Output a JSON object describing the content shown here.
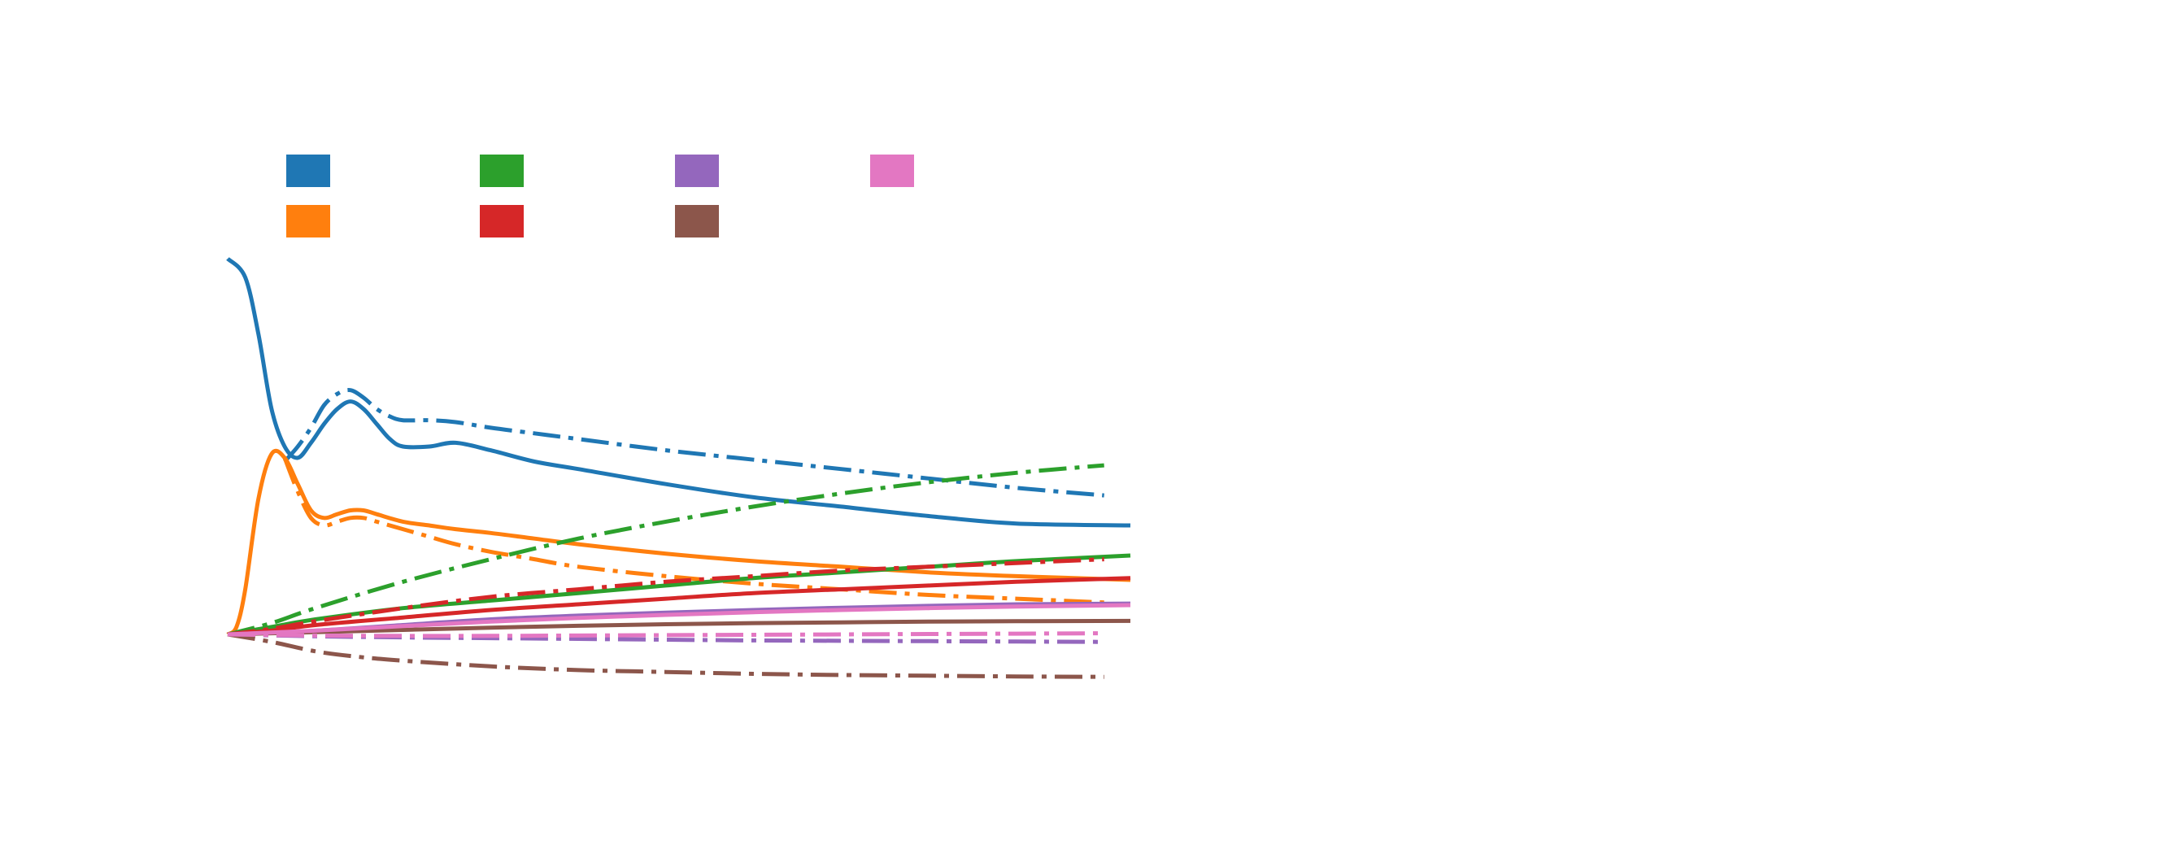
{
  "chart_data": {
    "type": "line",
    "title": "",
    "xlabel": "",
    "ylabel": "",
    "xlim": [
      0,
      1.03
    ],
    "ylim": [
      -0.3,
      1.0
    ],
    "grid": false,
    "legend": {
      "position": "top-left",
      "columns": 4
    },
    "series": [
      {
        "color": "#1f77b4",
        "dash": "solid",
        "x": [
          0,
          0.02,
          0.035,
          0.05,
          0.065,
          0.08,
          0.095,
          0.11,
          0.125,
          0.14,
          0.155,
          0.17,
          0.185,
          0.2,
          0.23,
          0.26,
          0.3,
          0.35,
          0.4,
          0.5,
          0.6,
          0.7,
          0.8,
          0.9,
          1.03
        ],
        "y": [
          1.0,
          0.95,
          0.8,
          0.6,
          0.5,
          0.47,
          0.51,
          0.56,
          0.6,
          0.62,
          0.6,
          0.56,
          0.52,
          0.5,
          0.5,
          0.51,
          0.49,
          0.46,
          0.44,
          0.4,
          0.365,
          0.34,
          0.315,
          0.295,
          0.29
        ]
      },
      {
        "color": "#1f77b4",
        "dash": "dashdot",
        "x": [
          0.065,
          0.08,
          0.095,
          0.11,
          0.125,
          0.14,
          0.155,
          0.17,
          0.185,
          0.2,
          0.23,
          0.26,
          0.3,
          0.35,
          0.4,
          0.5,
          0.6,
          0.7,
          0.8,
          0.9,
          1.0
        ],
        "y": [
          0.46,
          0.5,
          0.55,
          0.61,
          0.64,
          0.65,
          0.63,
          0.6,
          0.58,
          0.57,
          0.57,
          0.565,
          0.55,
          0.535,
          0.52,
          0.49,
          0.465,
          0.44,
          0.415,
          0.39,
          0.37
        ]
      },
      {
        "color": "#ff7f0e",
        "dash": "solid",
        "x": [
          0,
          0.01,
          0.02,
          0.035,
          0.05,
          0.065,
          0.08,
          0.095,
          0.11,
          0.125,
          0.14,
          0.155,
          0.17,
          0.2,
          0.23,
          0.26,
          0.3,
          0.35,
          0.4,
          0.5,
          0.6,
          0.7,
          0.8,
          0.9,
          1.03
        ],
        "y": [
          0.0,
          0.02,
          0.12,
          0.36,
          0.48,
          0.47,
          0.4,
          0.33,
          0.31,
          0.32,
          0.33,
          0.33,
          0.32,
          0.3,
          0.29,
          0.28,
          0.27,
          0.255,
          0.24,
          0.215,
          0.195,
          0.18,
          0.165,
          0.155,
          0.145
        ]
      },
      {
        "color": "#ff7f0e",
        "dash": "dashdot",
        "x": [
          0.065,
          0.08,
          0.095,
          0.11,
          0.125,
          0.14,
          0.155,
          0.17,
          0.2,
          0.23,
          0.26,
          0.3,
          0.35,
          0.4,
          0.5,
          0.6,
          0.7,
          0.8,
          0.9,
          1.0
        ],
        "y": [
          0.47,
          0.38,
          0.31,
          0.29,
          0.3,
          0.31,
          0.31,
          0.3,
          0.28,
          0.26,
          0.24,
          0.22,
          0.2,
          0.18,
          0.155,
          0.135,
          0.12,
          0.105,
          0.095,
          0.085
        ]
      },
      {
        "color": "#2ca02c",
        "dash": "solid",
        "x": [
          0,
          0.05,
          0.1,
          0.2,
          0.3,
          0.4,
          0.5,
          0.6,
          0.7,
          0.8,
          0.9,
          1.03
        ],
        "y": [
          0.0,
          0.02,
          0.04,
          0.07,
          0.09,
          0.11,
          0.13,
          0.15,
          0.165,
          0.18,
          0.195,
          0.21
        ]
      },
      {
        "color": "#2ca02c",
        "dash": "dashdot",
        "x": [
          0,
          0.05,
          0.1,
          0.2,
          0.3,
          0.4,
          0.5,
          0.6,
          0.7,
          0.8,
          0.9,
          1.0
        ],
        "y": [
          0.0,
          0.03,
          0.07,
          0.14,
          0.2,
          0.255,
          0.3,
          0.34,
          0.375,
          0.405,
          0.43,
          0.45
        ]
      },
      {
        "color": "#d62728",
        "dash": "solid",
        "x": [
          0,
          0.05,
          0.1,
          0.2,
          0.3,
          0.4,
          0.5,
          0.6,
          0.7,
          0.8,
          0.9,
          1.03
        ],
        "y": [
          0.0,
          0.01,
          0.025,
          0.045,
          0.065,
          0.08,
          0.095,
          0.11,
          0.12,
          0.13,
          0.14,
          0.15
        ]
      },
      {
        "color": "#d62728",
        "dash": "dashdot",
        "x": [
          0,
          0.05,
          0.1,
          0.2,
          0.3,
          0.4,
          0.5,
          0.6,
          0.7,
          0.8,
          0.9,
          1.0
        ],
        "y": [
          0.0,
          0.015,
          0.035,
          0.07,
          0.1,
          0.12,
          0.14,
          0.155,
          0.17,
          0.18,
          0.19,
          0.2
        ]
      },
      {
        "color": "#9467bd",
        "dash": "solid",
        "x": [
          0,
          0.1,
          0.2,
          0.3,
          0.4,
          0.5,
          0.6,
          0.7,
          0.8,
          0.9,
          1.03
        ],
        "y": [
          0.0,
          0.01,
          0.025,
          0.04,
          0.05,
          0.058,
          0.065,
          0.071,
          0.076,
          0.08,
          0.082
        ]
      },
      {
        "color": "#9467bd",
        "dash": "dashdot",
        "x": [
          0,
          0.1,
          0.2,
          0.3,
          0.4,
          0.5,
          0.6,
          0.7,
          0.8,
          0.9,
          1.0
        ],
        "y": [
          0.0,
          -0.005,
          -0.008,
          -0.01,
          -0.012,
          -0.014,
          -0.016,
          -0.017,
          -0.018,
          -0.019,
          -0.02
        ]
      },
      {
        "color": "#8c564b",
        "dash": "solid",
        "x": [
          0,
          0.1,
          0.2,
          0.3,
          0.4,
          0.5,
          0.6,
          0.7,
          0.8,
          0.9,
          1.03
        ],
        "y": [
          0.0,
          0.006,
          0.012,
          0.018,
          0.023,
          0.027,
          0.03,
          0.032,
          0.034,
          0.035,
          0.036
        ]
      },
      {
        "color": "#8c564b",
        "dash": "dashdot",
        "x": [
          0,
          0.05,
          0.1,
          0.15,
          0.2,
          0.3,
          0.4,
          0.5,
          0.6,
          0.7,
          0.8,
          0.9,
          1.0
        ],
        "y": [
          0.0,
          -0.02,
          -0.045,
          -0.06,
          -0.07,
          -0.085,
          -0.095,
          -0.1,
          -0.105,
          -0.108,
          -0.11,
          -0.112,
          -0.113
        ]
      },
      {
        "color": "#e377c2",
        "dash": "solid",
        "x": [
          0,
          0.1,
          0.2,
          0.3,
          0.4,
          0.5,
          0.6,
          0.7,
          0.8,
          0.9,
          1.03
        ],
        "y": [
          0.0,
          0.01,
          0.022,
          0.034,
          0.044,
          0.052,
          0.059,
          0.065,
          0.07,
          0.074,
          0.078
        ]
      },
      {
        "color": "#e377c2",
        "dash": "dashdot",
        "x": [
          0,
          0.1,
          0.2,
          0.3,
          0.4,
          0.5,
          0.6,
          0.7,
          0.8,
          0.9,
          1.0
        ],
        "y": [
          0.0,
          -0.003,
          -0.004,
          -0.004,
          -0.003,
          -0.002,
          -0.001,
          0.0,
          0.001,
          0.002,
          0.003
        ]
      }
    ]
  },
  "legend_colors": [
    "#1f77b4",
    "#ff7f0e",
    "#2ca02c",
    "#d62728",
    "#9467bd",
    "#8c564b",
    "#e377c2"
  ]
}
